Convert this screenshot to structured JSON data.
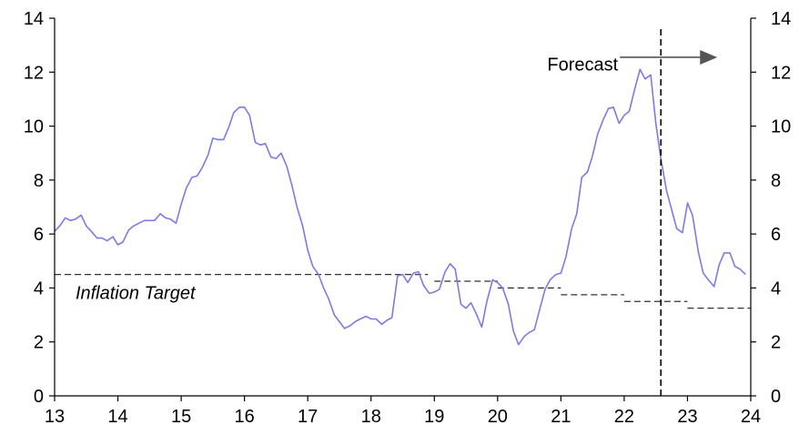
{
  "chart_data": {
    "type": "line",
    "title": "",
    "xlabel": "",
    "ylabel": "",
    "xlim": [
      13,
      24
    ],
    "ylim": [
      0,
      14
    ],
    "grid": false,
    "x_ticks": [
      "13",
      "14",
      "15",
      "16",
      "17",
      "18",
      "19",
      "20",
      "21",
      "22",
      "23",
      "24"
    ],
    "y_ticks": [
      "0",
      "2",
      "4",
      "6",
      "8",
      "10",
      "12",
      "14"
    ],
    "line_color": "#7b7be8",
    "target_color": "#333333",
    "series": [
      {
        "points": [
          [
            13.0,
            6.1
          ],
          [
            13.08,
            6.3
          ],
          [
            13.17,
            6.6
          ],
          [
            13.25,
            6.5
          ],
          [
            13.33,
            6.55
          ],
          [
            13.42,
            6.7
          ],
          [
            13.5,
            6.3
          ],
          [
            13.58,
            6.1
          ],
          [
            13.67,
            5.85
          ],
          [
            13.75,
            5.85
          ],
          [
            13.83,
            5.75
          ],
          [
            13.92,
            5.9
          ],
          [
            14.0,
            5.6
          ],
          [
            14.08,
            5.7
          ],
          [
            14.17,
            6.15
          ],
          [
            14.25,
            6.3
          ],
          [
            14.33,
            6.4
          ],
          [
            14.42,
            6.5
          ],
          [
            14.5,
            6.5
          ],
          [
            14.58,
            6.5
          ],
          [
            14.67,
            6.75
          ],
          [
            14.75,
            6.6
          ],
          [
            14.83,
            6.55
          ],
          [
            14.92,
            6.4
          ],
          [
            15.0,
            7.1
          ],
          [
            15.08,
            7.7
          ],
          [
            15.17,
            8.1
          ],
          [
            15.25,
            8.15
          ],
          [
            15.33,
            8.45
          ],
          [
            15.42,
            8.9
          ],
          [
            15.5,
            9.55
          ],
          [
            15.58,
            9.5
          ],
          [
            15.67,
            9.5
          ],
          [
            15.75,
            9.95
          ],
          [
            15.83,
            10.5
          ],
          [
            15.92,
            10.7
          ],
          [
            16.0,
            10.7
          ],
          [
            16.08,
            10.4
          ],
          [
            16.17,
            9.4
          ],
          [
            16.25,
            9.3
          ],
          [
            16.33,
            9.35
          ],
          [
            16.42,
            8.85
          ],
          [
            16.5,
            8.8
          ],
          [
            16.58,
            9.0
          ],
          [
            16.67,
            8.5
          ],
          [
            16.75,
            7.8
          ],
          [
            16.83,
            7.0
          ],
          [
            16.92,
            6.3
          ],
          [
            17.0,
            5.4
          ],
          [
            17.08,
            4.8
          ],
          [
            17.17,
            4.5
          ],
          [
            17.25,
            4.0
          ],
          [
            17.33,
            3.6
          ],
          [
            17.42,
            3.0
          ],
          [
            17.5,
            2.75
          ],
          [
            17.58,
            2.5
          ],
          [
            17.67,
            2.6
          ],
          [
            17.75,
            2.75
          ],
          [
            17.83,
            2.85
          ],
          [
            17.92,
            2.95
          ],
          [
            18.0,
            2.85
          ],
          [
            18.08,
            2.85
          ],
          [
            18.17,
            2.65
          ],
          [
            18.25,
            2.8
          ],
          [
            18.33,
            2.9
          ],
          [
            18.42,
            4.45
          ],
          [
            18.5,
            4.5
          ],
          [
            18.58,
            4.2
          ],
          [
            18.67,
            4.55
          ],
          [
            18.75,
            4.6
          ],
          [
            18.83,
            4.1
          ],
          [
            18.92,
            3.8
          ],
          [
            19.0,
            3.85
          ],
          [
            19.08,
            3.95
          ],
          [
            19.17,
            4.6
          ],
          [
            19.25,
            4.9
          ],
          [
            19.33,
            4.7
          ],
          [
            19.42,
            3.4
          ],
          [
            19.5,
            3.25
          ],
          [
            19.58,
            3.45
          ],
          [
            19.67,
            3.0
          ],
          [
            19.75,
            2.55
          ],
          [
            19.83,
            3.5
          ],
          [
            19.92,
            4.3
          ],
          [
            20.0,
            4.2
          ],
          [
            20.08,
            4.0
          ],
          [
            20.17,
            3.4
          ],
          [
            20.25,
            2.4
          ],
          [
            20.33,
            1.9
          ],
          [
            20.42,
            2.2
          ],
          [
            20.5,
            2.35
          ],
          [
            20.58,
            2.45
          ],
          [
            20.67,
            3.25
          ],
          [
            20.75,
            3.95
          ],
          [
            20.83,
            4.3
          ],
          [
            20.92,
            4.5
          ],
          [
            21.0,
            4.55
          ],
          [
            21.08,
            5.15
          ],
          [
            21.17,
            6.2
          ],
          [
            21.25,
            6.75
          ],
          [
            21.33,
            8.1
          ],
          [
            21.42,
            8.3
          ],
          [
            21.5,
            8.9
          ],
          [
            21.58,
            9.7
          ],
          [
            21.67,
            10.25
          ],
          [
            21.75,
            10.65
          ],
          [
            21.83,
            10.7
          ],
          [
            21.92,
            10.1
          ],
          [
            22.0,
            10.4
          ],
          [
            22.08,
            10.55
          ],
          [
            22.17,
            11.4
          ],
          [
            22.25,
            12.1
          ],
          [
            22.33,
            11.75
          ],
          [
            22.42,
            11.9
          ],
          [
            22.5,
            10.1
          ],
          [
            22.58,
            8.8
          ],
          [
            22.67,
            7.6
          ],
          [
            22.75,
            6.9
          ],
          [
            22.83,
            6.2
          ],
          [
            22.92,
            6.05
          ],
          [
            23.0,
            7.15
          ],
          [
            23.08,
            6.7
          ],
          [
            23.17,
            5.35
          ],
          [
            23.25,
            4.55
          ],
          [
            23.33,
            4.3
          ],
          [
            23.42,
            4.05
          ],
          [
            23.5,
            4.85
          ],
          [
            23.58,
            5.3
          ],
          [
            23.67,
            5.3
          ],
          [
            23.75,
            4.8
          ],
          [
            23.83,
            4.7
          ],
          [
            23.92,
            4.5
          ]
        ]
      }
    ],
    "target_segments": [
      {
        "x0": 13.0,
        "x1": 18.9,
        "y": 4.5
      },
      {
        "x0": 19.0,
        "x1": 20.0,
        "y": 4.25
      },
      {
        "x0": 20.0,
        "x1": 21.0,
        "y": 4.0
      },
      {
        "x0": 21.0,
        "x1": 22.0,
        "y": 3.75
      },
      {
        "x0": 22.0,
        "x1": 23.0,
        "y": 3.5
      },
      {
        "x0": 23.0,
        "x1": 24.0,
        "y": 3.25
      }
    ],
    "forecast_x": 22.58,
    "annotations": {
      "forecast": "Forecast",
      "inflation_target": "Inflation Target"
    }
  }
}
